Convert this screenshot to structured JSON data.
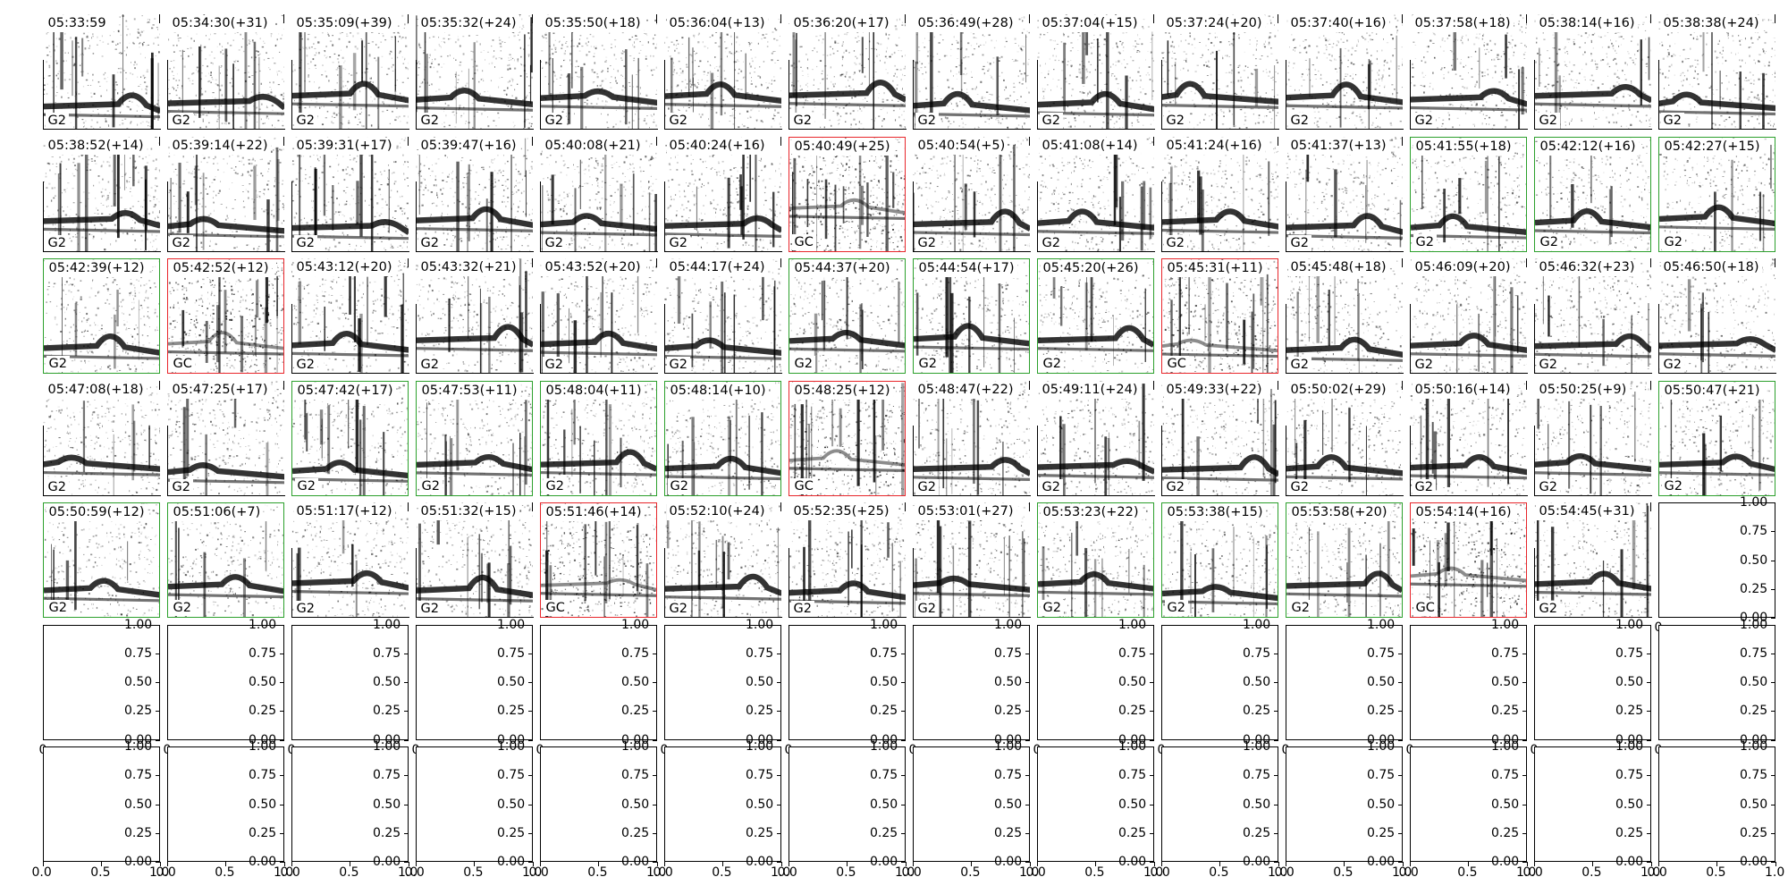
{
  "grid": {
    "rows": 7,
    "cols": 14
  },
  "colors": {
    "ok": "#2ca02c",
    "flag": "#e8262b",
    "axis": "#000000",
    "bg": "#ffffff",
    "ink": "#000000"
  },
  "chart_data": {
    "type": "spectrogram-grid",
    "title": "",
    "tiles": [
      {
        "time": "05:33:59",
        "label": "G2",
        "frame": "none"
      },
      {
        "time": "05:34:30(+31)",
        "label": "G2",
        "frame": "none"
      },
      {
        "time": "05:35:09(+39)",
        "label": "G2",
        "frame": "none"
      },
      {
        "time": "05:35:32(+24)",
        "label": "G2",
        "frame": "none"
      },
      {
        "time": "05:35:50(+18)",
        "label": "G2",
        "frame": "none"
      },
      {
        "time": "05:36:04(+13)",
        "label": "G2",
        "frame": "none"
      },
      {
        "time": "05:36:20(+17)",
        "label": "G2",
        "frame": "none"
      },
      {
        "time": "05:36:49(+28)",
        "label": "G2",
        "frame": "none"
      },
      {
        "time": "05:37:04(+15)",
        "label": "G2",
        "frame": "none"
      },
      {
        "time": "05:37:24(+20)",
        "label": "G2",
        "frame": "none"
      },
      {
        "time": "05:37:40(+16)",
        "label": "G2",
        "frame": "none"
      },
      {
        "time": "05:37:58(+18)",
        "label": "G2",
        "frame": "none"
      },
      {
        "time": "05:38:14(+16)",
        "label": "G2",
        "frame": "none"
      },
      {
        "time": "05:38:38(+24)",
        "label": "G2",
        "frame": "none"
      },
      {
        "time": "05:38:52(+14)",
        "label": "G2",
        "frame": "none"
      },
      {
        "time": "05:39:14(+22)",
        "label": "G2",
        "frame": "none"
      },
      {
        "time": "05:39:31(+17)",
        "label": "G2",
        "frame": "none"
      },
      {
        "time": "05:39:47(+16)",
        "label": "G2",
        "frame": "none"
      },
      {
        "time": "05:40:08(+21)",
        "label": "G2",
        "frame": "none"
      },
      {
        "time": "05:40:24(+16)",
        "label": "G2",
        "frame": "none"
      },
      {
        "time": "05:40:49(+25)",
        "label": "GC",
        "frame": "red"
      },
      {
        "time": "05:40:54(+5)",
        "label": "G2",
        "frame": "none"
      },
      {
        "time": "05:41:08(+14)",
        "label": "G2",
        "frame": "none"
      },
      {
        "time": "05:41:24(+16)",
        "label": "G2",
        "frame": "none"
      },
      {
        "time": "05:41:37(+13)",
        "label": "G2",
        "frame": "none"
      },
      {
        "time": "05:41:55(+18)",
        "label": "G2",
        "frame": "green"
      },
      {
        "time": "05:42:12(+16)",
        "label": "G2",
        "frame": "green"
      },
      {
        "time": "05:42:27(+15)",
        "label": "G2",
        "frame": "green"
      },
      {
        "time": "05:42:39(+12)",
        "label": "G2",
        "frame": "green"
      },
      {
        "time": "05:42:52(+12)",
        "label": "GC",
        "frame": "red"
      },
      {
        "time": "05:43:12(+20)",
        "label": "G2",
        "frame": "none"
      },
      {
        "time": "05:43:32(+21)",
        "label": "G2",
        "frame": "none"
      },
      {
        "time": "05:43:52(+20)",
        "label": "G2",
        "frame": "none"
      },
      {
        "time": "05:44:17(+24)",
        "label": "G2",
        "frame": "none"
      },
      {
        "time": "05:44:37(+20)",
        "label": "G2",
        "frame": "green"
      },
      {
        "time": "05:44:54(+17)",
        "label": "G2",
        "frame": "green"
      },
      {
        "time": "05:45:20(+26)",
        "label": "G2",
        "frame": "green"
      },
      {
        "time": "05:45:31(+11)",
        "label": "GC",
        "frame": "red"
      },
      {
        "time": "05:45:48(+18)",
        "label": "G2",
        "frame": "none"
      },
      {
        "time": "05:46:09(+20)",
        "label": "G2",
        "frame": "none"
      },
      {
        "time": "05:46:32(+23)",
        "label": "G2",
        "frame": "none"
      },
      {
        "time": "05:46:50(+18)",
        "label": "G2",
        "frame": "none"
      },
      {
        "time": "05:47:08(+18)",
        "label": "G2",
        "frame": "none"
      },
      {
        "time": "05:47:25(+17)",
        "label": "G2",
        "frame": "none"
      },
      {
        "time": "05:47:42(+17)",
        "label": "G2",
        "frame": "green"
      },
      {
        "time": "05:47:53(+11)",
        "label": "G2",
        "frame": "green"
      },
      {
        "time": "05:48:04(+11)",
        "label": "G2",
        "frame": "green"
      },
      {
        "time": "05:48:14(+10)",
        "label": "G2",
        "frame": "green"
      },
      {
        "time": "05:48:25(+12)",
        "label": "GC",
        "frame": "red"
      },
      {
        "time": "05:48:47(+22)",
        "label": "G2",
        "frame": "none"
      },
      {
        "time": "05:49:11(+24)",
        "label": "G2",
        "frame": "none"
      },
      {
        "time": "05:49:33(+22)",
        "label": "G2",
        "frame": "none"
      },
      {
        "time": "05:50:02(+29)",
        "label": "G2",
        "frame": "none"
      },
      {
        "time": "05:50:16(+14)",
        "label": "G2",
        "frame": "none"
      },
      {
        "time": "05:50:25(+9)",
        "label": "G2",
        "frame": "none"
      },
      {
        "time": "05:50:47(+21)",
        "label": "G2",
        "frame": "green"
      },
      {
        "time": "05:50:59(+12)",
        "label": "G2",
        "frame": "green"
      },
      {
        "time": "05:51:06(+7)",
        "label": "G2",
        "frame": "green"
      },
      {
        "time": "05:51:17(+12)",
        "label": "G2",
        "frame": "none"
      },
      {
        "time": "05:51:32(+15)",
        "label": "G2",
        "frame": "none"
      },
      {
        "time": "05:51:46(+14)",
        "label": "GC",
        "frame": "red"
      },
      {
        "time": "05:52:10(+24)",
        "label": "G2",
        "frame": "none"
      },
      {
        "time": "05:52:35(+25)",
        "label": "G2",
        "frame": "none"
      },
      {
        "time": "05:53:01(+27)",
        "label": "G2",
        "frame": "none"
      },
      {
        "time": "05:53:23(+22)",
        "label": "G2",
        "frame": "green"
      },
      {
        "time": "05:53:38(+15)",
        "label": "G2",
        "frame": "green"
      },
      {
        "time": "05:53:58(+20)",
        "label": "G2",
        "frame": "green"
      },
      {
        "time": "05:54:14(+16)",
        "label": "GC",
        "frame": "red"
      },
      {
        "time": "05:54:45(+31)",
        "label": "G2",
        "frame": "none"
      }
    ],
    "empty_axes": {
      "xlim": [
        0,
        1
      ],
      "ylim": [
        0,
        1
      ],
      "x_ticks": [
        "0.0",
        "0.5",
        "1.0"
      ],
      "y_ticks": [
        "1.00",
        "0.75",
        "0.50",
        "0.25",
        "0.00"
      ],
      "x_edge_label": "0",
      "y_edge_label": "1.00"
    }
  }
}
